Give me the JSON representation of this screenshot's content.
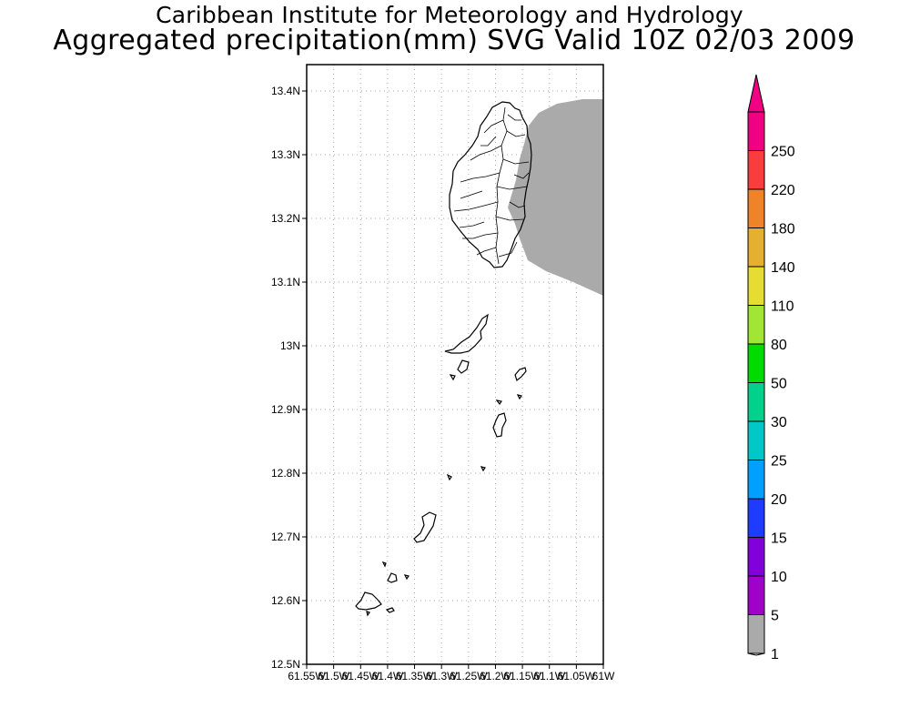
{
  "header": {
    "institute": "Caribbean Institute for Meteorology and Hydrology",
    "product": "Aggregated precipitation(mm) SVG Valid 10Z 02/03 2009"
  },
  "map": {
    "region": "St. Vincent and the Grenadines",
    "lon_range": [
      -61.55,
      -61.0
    ],
    "lat_range": [
      12.5,
      13.4
    ],
    "grid": true,
    "lat_ticks": [
      "12.5N",
      "12.6N",
      "12.7N",
      "12.8N",
      "12.9N",
      "13N",
      "13.1N",
      "13.2N",
      "13.3N",
      "13.4N"
    ],
    "lon_ticks": [
      "61.55W",
      "61.5W",
      "61.45W",
      "61.4W",
      "61.35W",
      "61.3W",
      "61.25W",
      "61.2W",
      "61.15W",
      "61.1W",
      "61.05W",
      "61W"
    ],
    "precip_field": {
      "min_mm": 1,
      "max_mm": 5,
      "fill": "#aaaaaa",
      "area": "east of St. Vincent"
    }
  },
  "colorbar": {
    "levels": [
      "1",
      "5",
      "10",
      "15",
      "20",
      "25",
      "30",
      "50",
      "80",
      "110",
      "140",
      "180",
      "220",
      "250"
    ],
    "colors": [
      "#aaaaaa",
      "#a000c8",
      "#8200dc",
      "#1e3cff",
      "#00a0ff",
      "#00c8c8",
      "#00d28c",
      "#00dc00",
      "#a0e632",
      "#e6dc32",
      "#e6af2d",
      "#f08228",
      "#fa3c3c",
      "#f00082"
    ],
    "under_color": "#ffffff",
    "over_color": "#f00082"
  }
}
